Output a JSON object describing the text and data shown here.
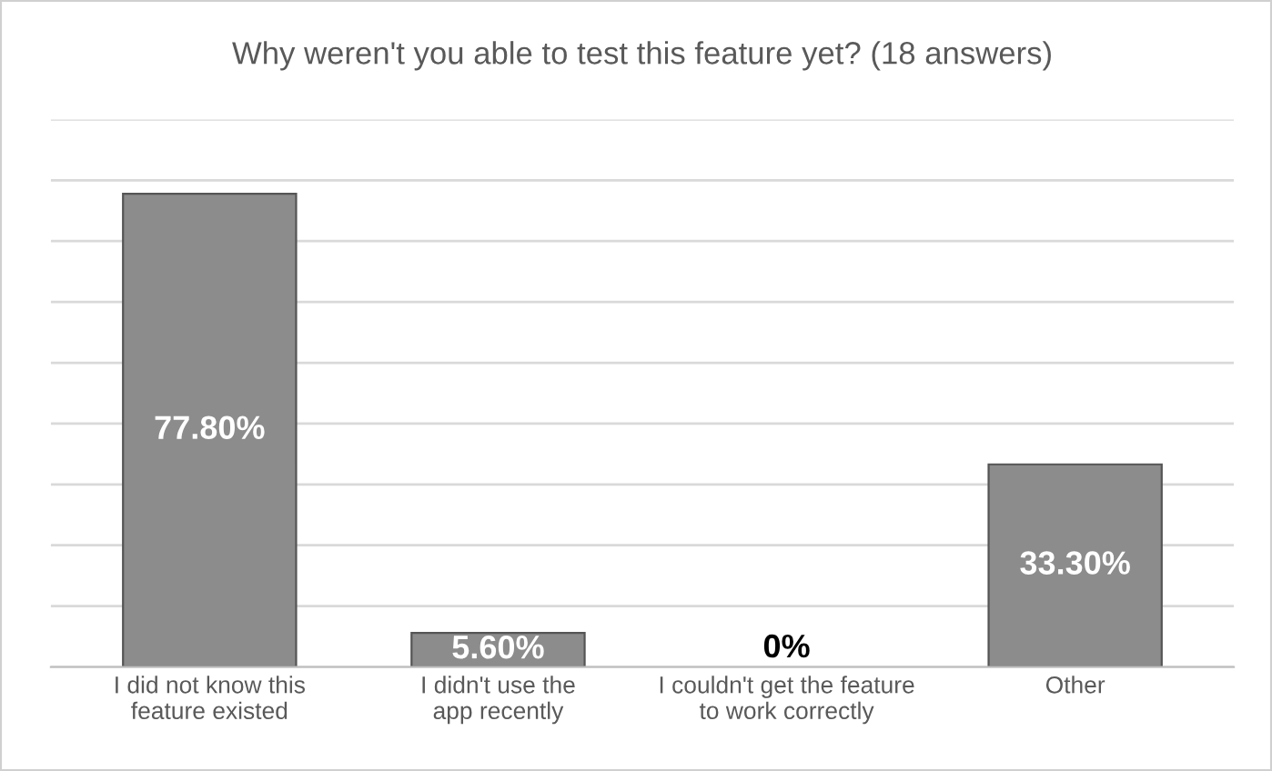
{
  "chart_data": {
    "type": "bar",
    "title": "Why weren't you able to test this feature yet? (18 answers)",
    "categories": [
      "I did not know this\nfeature existed",
      "I didn't use the\napp recently",
      "I couldn't get the feature\nto work correctly",
      "Other"
    ],
    "values": [
      77.8,
      5.6,
      0,
      33.3
    ],
    "value_labels": [
      "77.80%",
      "5.60%",
      "0%",
      "33.30%"
    ],
    "color": "#8c8c8c",
    "ylim": [
      0,
      90
    ],
    "yticks": [
      {
        "value": 0,
        "label": null
      },
      {
        "value": 10,
        "label": null
      },
      {
        "value": 20,
        "label": null
      },
      {
        "value": 30,
        "label": null
      },
      {
        "value": 40,
        "label": null
      },
      {
        "value": 50,
        "label": null
      },
      {
        "value": 60,
        "label": null
      },
      {
        "value": 70,
        "label": null
      },
      {
        "value": 80,
        "label": null
      },
      {
        "value": 90,
        "label": null
      }
    ],
    "tick_labels": "x",
    "grid": "y"
  }
}
